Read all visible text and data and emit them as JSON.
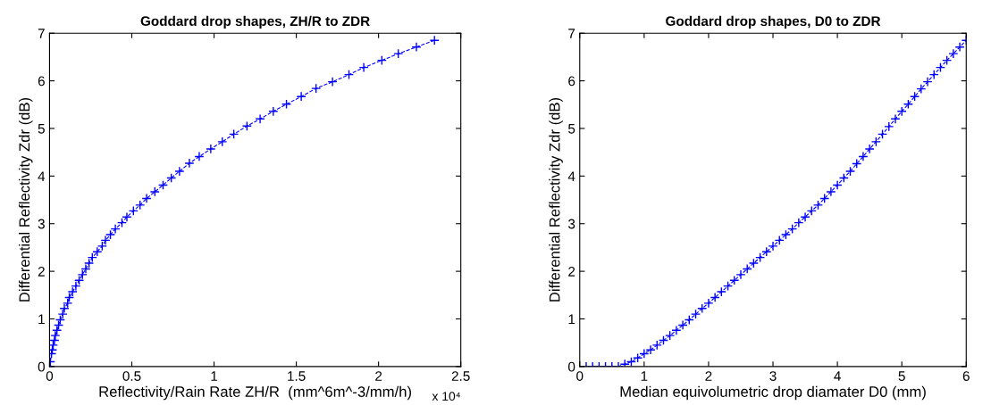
{
  "chart_data": [
    {
      "type": "line",
      "title": "Goddard drop shapes, ZH/R to ZDR",
      "xlabel": "Reflectivity/Rain Rate ZH/R  (mm^6m^-3/mm/h)",
      "ylabel": "Differential Reflectivity Zdr (dB)",
      "annotations": [
        "x 10⁴"
      ],
      "xlim": [
        0,
        2.5
      ],
      "xticks": [
        0,
        0.5,
        1,
        1.5,
        2,
        2.5
      ],
      "ylim": [
        0,
        7
      ],
      "yticks": [
        0,
        1,
        2,
        3,
        4,
        5,
        6,
        7
      ],
      "grid": false,
      "marker": "cross",
      "line_style": "dashed",
      "series": [
        {
          "color": "#0000ff",
          "x": [
            0.001,
            0.002,
            0.005,
            0.012,
            0.017,
            0.022,
            0.03,
            0.035,
            0.045,
            0.055,
            0.065,
            0.08,
            0.09,
            0.11,
            0.12,
            0.14,
            0.16,
            0.18,
            0.2,
            0.22,
            0.24,
            0.26,
            0.29,
            0.32,
            0.34,
            0.37,
            0.4,
            0.44,
            0.47,
            0.51,
            0.55,
            0.59,
            0.64,
            0.69,
            0.74,
            0.79,
            0.85,
            0.91,
            0.98,
            1.05,
            1.12,
            1.2,
            1.28,
            1.36,
            1.44,
            1.53,
            1.62,
            1.72,
            1.82,
            1.91,
            2.02,
            2.12,
            2.23,
            2.34
          ],
          "values": [
            0,
            0,
            0.1,
            0.27,
            0.35,
            0.45,
            0.55,
            0.65,
            0.76,
            0.87,
            0.98,
            1.1,
            1.22,
            1.33,
            1.45,
            1.57,
            1.69,
            1.81,
            1.93,
            2.05,
            2.17,
            2.29,
            2.41,
            2.53,
            2.65,
            2.77,
            2.89,
            3.02,
            3.14,
            3.27,
            3.39,
            3.53,
            3.67,
            3.81,
            3.96,
            4.1,
            4.27,
            4.41,
            4.57,
            4.72,
            4.88,
            5.05,
            5.2,
            5.36,
            5.51,
            5.67,
            5.84,
            5.98,
            6.13,
            6.28,
            6.43,
            6.57,
            6.71,
            6.85
          ]
        }
      ]
    },
    {
      "type": "line",
      "title": "Goddard drop shapes, D0 to ZDR",
      "xlabel": "Median equivolumetric drop diamater D0 (mm)",
      "ylabel": "Differential Reflectivity Zdr (dB)",
      "xlim": [
        0,
        6
      ],
      "xticks": [
        0,
        1,
        2,
        3,
        4,
        5,
        6
      ],
      "ylim": [
        0,
        7
      ],
      "yticks": [
        0,
        1,
        2,
        3,
        4,
        5,
        6,
        7
      ],
      "grid": false,
      "marker": "cross",
      "line_style": "dashed",
      "series": [
        {
          "color": "#0000ff",
          "x": [
            0.1,
            0.2,
            0.3,
            0.4,
            0.5,
            0.6,
            0.7,
            0.8,
            0.9,
            1.0,
            1.1,
            1.2,
            1.3,
            1.4,
            1.5,
            1.6,
            1.7,
            1.8,
            1.9,
            2.0,
            2.1,
            2.2,
            2.3,
            2.4,
            2.5,
            2.6,
            2.7,
            2.8,
            2.9,
            3.0,
            3.1,
            3.2,
            3.3,
            3.4,
            3.5,
            3.6,
            3.7,
            3.8,
            3.9,
            4.0,
            4.1,
            4.2,
            4.3,
            4.4,
            4.5,
            4.6,
            4.7,
            4.8,
            4.9,
            5.0,
            5.1,
            5.2,
            5.3,
            5.4,
            5.5,
            5.6,
            5.7,
            5.8,
            5.9,
            6.0
          ],
          "values": [
            0,
            0,
            0,
            0,
            0,
            0,
            0.05,
            0.1,
            0.18,
            0.27,
            0.35,
            0.45,
            0.55,
            0.65,
            0.76,
            0.87,
            0.98,
            1.1,
            1.22,
            1.33,
            1.45,
            1.57,
            1.69,
            1.81,
            1.93,
            2.05,
            2.17,
            2.29,
            2.41,
            2.53,
            2.65,
            2.77,
            2.89,
            3.02,
            3.14,
            3.27,
            3.39,
            3.53,
            3.67,
            3.81,
            3.96,
            4.1,
            4.26,
            4.41,
            4.57,
            4.72,
            4.88,
            5.04,
            5.2,
            5.36,
            5.51,
            5.67,
            5.83,
            5.98,
            6.13,
            6.28,
            6.43,
            6.57,
            6.71,
            6.85
          ]
        }
      ]
    }
  ]
}
